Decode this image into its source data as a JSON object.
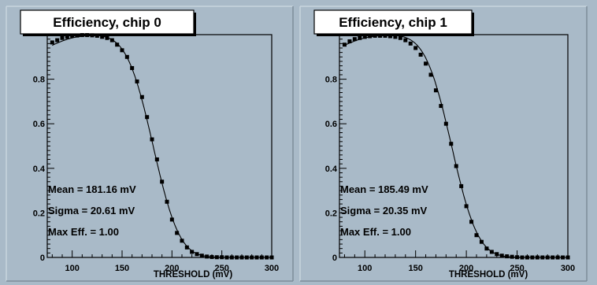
{
  "chart_data": [
    {
      "type": "scatter",
      "title": "Efficiency, chip 0",
      "xlabel": "THRESHOLD (mV)",
      "ylabel": "",
      "xlim": [
        75,
        300
      ],
      "ylim": [
        0,
        1.0
      ],
      "x_ticks": [
        "100",
        "150",
        "200",
        "250",
        "300"
      ],
      "y_ticks": [
        "0",
        "0.2",
        "0.4",
        "0.6",
        "0.8"
      ],
      "stats": [
        "Mean = 181.16 mV",
        "Sigma = 20.61 mV",
        "Max Eff. = 1.00"
      ],
      "fit": {
        "mean": 181.16,
        "sigma": 20.61,
        "max": 1.0
      },
      "x": [
        80,
        85,
        90,
        95,
        100,
        105,
        110,
        115,
        120,
        125,
        130,
        135,
        140,
        145,
        150,
        155,
        160,
        165,
        170,
        175,
        180,
        185,
        190,
        195,
        200,
        205,
        210,
        215,
        220,
        225,
        230,
        235,
        240,
        245,
        250,
        255,
        260,
        265,
        270,
        275,
        280,
        285,
        290,
        295,
        300
      ],
      "values": [
        0.965,
        0.975,
        0.985,
        0.99,
        0.995,
        0.996,
        0.998,
        0.998,
        0.997,
        0.995,
        0.99,
        0.985,
        0.975,
        0.955,
        0.93,
        0.9,
        0.85,
        0.79,
        0.72,
        0.63,
        0.53,
        0.44,
        0.34,
        0.25,
        0.17,
        0.11,
        0.075,
        0.045,
        0.025,
        0.015,
        0.008,
        0.004,
        0.002,
        0.001,
        0.001,
        0.0,
        0.0,
        0.0,
        0.0,
        0.0,
        0.0,
        0.0,
        0.0,
        0.0,
        0.0
      ]
    },
    {
      "type": "scatter",
      "title": "Efficiency, chip 1",
      "xlabel": "THRESHOLD (mV)",
      "ylabel": "",
      "xlim": [
        75,
        300
      ],
      "ylim": [
        0,
        1.0
      ],
      "x_ticks": [
        "100",
        "150",
        "200",
        "250",
        "300"
      ],
      "y_ticks": [
        "0",
        "0.2",
        "0.4",
        "0.6",
        "0.8"
      ],
      "stats": [
        "Mean = 185.49 mV",
        "Sigma = 20.35 mV",
        "Max Eff. = 1.00"
      ],
      "fit": {
        "mean": 185.49,
        "sigma": 20.35,
        "max": 1.0
      },
      "x": [
        80,
        85,
        90,
        95,
        100,
        105,
        110,
        115,
        120,
        125,
        130,
        135,
        140,
        145,
        150,
        155,
        160,
        165,
        170,
        175,
        180,
        185,
        190,
        195,
        200,
        205,
        210,
        215,
        220,
        225,
        230,
        235,
        240,
        245,
        250,
        255,
        260,
        265,
        270,
        275,
        280,
        285,
        290,
        295,
        300
      ],
      "values": [
        0.955,
        0.97,
        0.98,
        0.985,
        0.99,
        0.993,
        0.995,
        0.995,
        0.995,
        0.993,
        0.99,
        0.985,
        0.975,
        0.96,
        0.94,
        0.91,
        0.87,
        0.82,
        0.75,
        0.68,
        0.6,
        0.51,
        0.41,
        0.32,
        0.23,
        0.16,
        0.1,
        0.07,
        0.04,
        0.025,
        0.015,
        0.008,
        0.005,
        0.003,
        0.001,
        0.0,
        0.0,
        0.0,
        0.0,
        0.0,
        0.0,
        0.0,
        0.0,
        0.0,
        0.0
      ]
    }
  ]
}
